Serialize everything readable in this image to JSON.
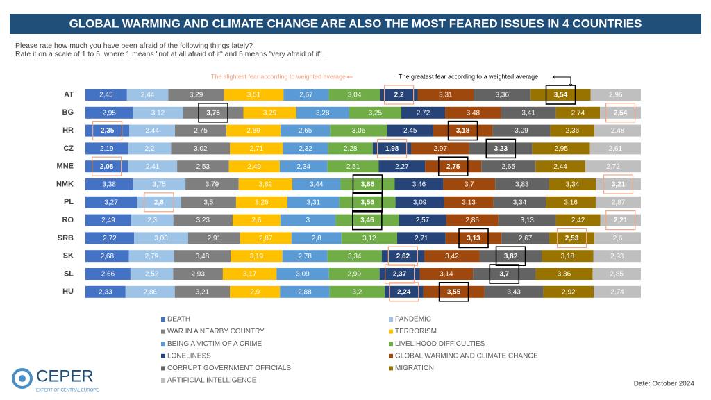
{
  "header": {
    "title": "GLOBAL WARMING AND CLIMATE CHANGE ARE ALSO THE MOST FEARED ISSUES IN 4 COUNTRIES",
    "question": [
      "Please rate how much you have been afraid of the following things lately?",
      "Rate it on a scale of 1 to 5, where 1 means \"not at all afraid of it\" and 5 means \"very afraid of it\"."
    ]
  },
  "chart_data": {
    "type": "bar",
    "orientation": "horizontal",
    "stack": "percent",
    "annotations": {
      "lowest": "The slightest fear according to weighted average",
      "highest": "The greatest fear according to a weighted average"
    },
    "highlight_colors": {
      "lowest": "#f4a582",
      "highest": "#000000"
    },
    "categories": [
      "AT",
      "BG",
      "HR",
      "CZ",
      "MNE",
      "NMK",
      "PL",
      "RO",
      "SRB",
      "SK",
      "SL",
      "HU"
    ],
    "series": [
      {
        "name": "DEATH",
        "color": "#4472c4",
        "values": [
          2.45,
          2.95,
          2.35,
          2.19,
          2.08,
          3.38,
          3.27,
          2.49,
          2.72,
          2.68,
          2.66,
          2.33
        ],
        "value_labels": [
          "2,45",
          "2,95",
          "2,35",
          "2,19",
          "2,08",
          "3,38",
          "3,27",
          "2,49",
          "2,72",
          "2,68",
          "2,66",
          "2,33"
        ]
      },
      {
        "name": "PANDEMIC",
        "color": "#9dc3e6",
        "values": [
          2.44,
          3.12,
          2.44,
          2.2,
          2.41,
          3.75,
          2.8,
          2.3,
          3.03,
          2.79,
          2.52,
          2.86
        ],
        "value_labels": [
          "2,44",
          "3,12",
          "2,44",
          "2,2",
          "2,41",
          "3,75",
          "2,8",
          "2,3",
          "3,03",
          "2,79",
          "2,52",
          "2,86"
        ]
      },
      {
        "name": "WAR IN A NEARBY COUNTRY",
        "color": "#7f7f7f",
        "values": [
          3.29,
          3.75,
          2.75,
          3.02,
          2.53,
          3.79,
          3.5,
          3.23,
          2.91,
          3.48,
          2.93,
          3.21
        ],
        "value_labels": [
          "3,29",
          "3,75",
          "2,75",
          "3,02",
          "2,53",
          "3,79",
          "3,5",
          "3,23",
          "2,91",
          "3,48",
          "2,93",
          "3,21"
        ]
      },
      {
        "name": "TERRORISM",
        "color": "#ffc000",
        "values": [
          3.51,
          3.29,
          2.89,
          2.71,
          2.49,
          3.82,
          3.26,
          2.6,
          2.87,
          3.19,
          3.17,
          2.9
        ],
        "value_labels": [
          "3,51",
          "3,29",
          "2,89",
          "2,71",
          "2,49",
          "3,82",
          "3,26",
          "2,6",
          "2,87",
          "3,19",
          "3,17",
          "2,9"
        ]
      },
      {
        "name": "BEING A VICTIM OF A CRIME",
        "color": "#5b9bd5",
        "values": [
          2.67,
          3.28,
          2.65,
          2.32,
          2.34,
          3.44,
          3.31,
          3,
          2.8,
          2.78,
          3.09,
          2.88
        ],
        "value_labels": [
          "2,67",
          "3,28",
          "2,65",
          "2,32",
          "2,34",
          "3,44",
          "3,31",
          "3",
          "2,8",
          "2,78",
          "3,09",
          "2,88"
        ]
      },
      {
        "name": "LIVELIHOOD DIFFICULTIES",
        "color": "#70ad47",
        "values": [
          3.04,
          3.25,
          3.06,
          2.28,
          2.51,
          3.86,
          3.56,
          3.46,
          3.12,
          3.34,
          2.99,
          3.2
        ],
        "value_labels": [
          "3,04",
          "3,25",
          "3,06",
          "2,28",
          "2,51",
          "3,86",
          "3,56",
          "3,46",
          "3,12",
          "3,34",
          "2,99",
          "3,2"
        ]
      },
      {
        "name": "LONELINESS",
        "color": "#264478",
        "values": [
          2.2,
          2.72,
          2.45,
          1.98,
          2.27,
          3.46,
          3.09,
          2.57,
          2.71,
          2.62,
          2.37,
          2.24
        ],
        "value_labels": [
          "2,2",
          "2,72",
          "2,45",
          "1,98",
          "2,27",
          "3,46",
          "3,09",
          "2,57",
          "2,71",
          "2,62",
          "2,37",
          "2,24"
        ]
      },
      {
        "name": "GLOBAL WARMING AND CLIMATE CHANGE",
        "color": "#9e480e",
        "values": [
          3.31,
          3.48,
          3.18,
          2.97,
          2.75,
          3.7,
          3.13,
          2.85,
          3.13,
          3.42,
          3.14,
          3.55
        ],
        "value_labels": [
          "3,31",
          "3,48",
          "3,18",
          "2,97",
          "2,75",
          "3,7",
          "3,13",
          "2,85",
          "3,13",
          "3,42",
          "3,14",
          "3,55"
        ]
      },
      {
        "name": "CORRUPT GOVERNMENT OFFICIALS",
        "color": "#636363",
        "values": [
          3.36,
          3.41,
          3.09,
          3.23,
          2.65,
          3.83,
          3.34,
          3.13,
          2.67,
          3.82,
          3.7,
          3.43
        ],
        "value_labels": [
          "3,36",
          "3,41",
          "3,09",
          "3,23",
          "2,65",
          "3,83",
          "3,34",
          "3,13",
          "2,67",
          "3,82",
          "3,7",
          "3,43"
        ]
      },
      {
        "name": "MIGRATION",
        "color": "#997300",
        "values": [
          3.54,
          2.74,
          2.36,
          2.95,
          2.44,
          3.34,
          3.16,
          2.42,
          2.53,
          3.18,
          3.36,
          2.92
        ],
        "value_labels": [
          "3,54",
          "2,74",
          "2,36",
          "2,95",
          "2,44",
          "3,34",
          "3,16",
          "2,42",
          "2,53",
          "3,18",
          "3,36",
          "2,92"
        ]
      },
      {
        "name": "ARTIFICIAL INTELLIGENCE",
        "color": "#bfbfbf",
        "values": [
          2.96,
          2.54,
          2.48,
          2.61,
          2.72,
          3.21,
          2.87,
          2.21,
          2.6,
          2.93,
          2.85,
          2.74
        ],
        "value_labels": [
          "2,96",
          "2,54",
          "2,48",
          "2,61",
          "2,72",
          "3,21",
          "2,87",
          "2,21",
          "2,6",
          "2,93",
          "2,85",
          "2,74"
        ]
      }
    ]
  },
  "footer": {
    "logo": "CEPER",
    "tagline": "EXPERT OF CENTRAL EUROPE",
    "date": "Date: October 2024"
  }
}
